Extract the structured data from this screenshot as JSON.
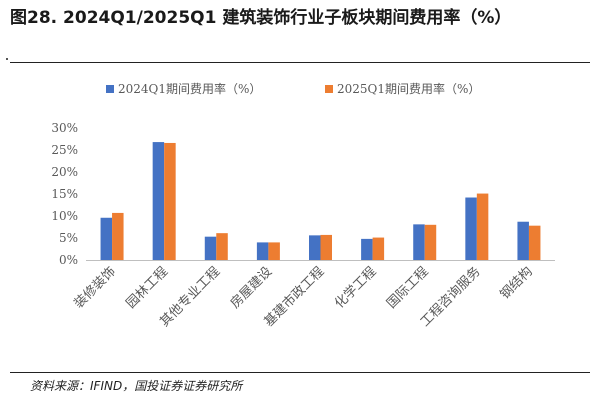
{
  "header": {
    "figure_title": "图28. 2024Q1/2025Q1 建筑装饰行业子板块期间费用率（%）"
  },
  "footer": {
    "source": "资料来源：IFIND，国投证券证券研究所"
  },
  "colors": {
    "series_2024": "#4472C4",
    "series_2025": "#ED7D31",
    "axis": "#bfbfbf",
    "text": "#595959"
  },
  "chart_data": {
    "type": "bar",
    "title": "",
    "xlabel": "",
    "ylabel": "",
    "categories": [
      "装修装饰",
      "园林工程",
      "其他专业工程",
      "房屋建设",
      "基建市政工程",
      "化学工程",
      "国际工程",
      "工程咨询服务",
      "钢结构"
    ],
    "series": [
      {
        "name": "2024Q1期间费用率（%）",
        "values": [
          9.6,
          26.8,
          5.3,
          4.0,
          5.6,
          4.8,
          8.1,
          14.2,
          8.7
        ]
      },
      {
        "name": "2025Q1期间费用率（%）",
        "values": [
          10.7,
          26.6,
          6.1,
          4.0,
          5.7,
          5.1,
          8.0,
          15.1,
          7.8
        ]
      }
    ],
    "ylim": [
      0,
      30
    ],
    "yticks": [
      "0%",
      "5%",
      "10%",
      "15%",
      "20%",
      "25%",
      "30%"
    ],
    "grid": false,
    "legend_position": "top"
  }
}
